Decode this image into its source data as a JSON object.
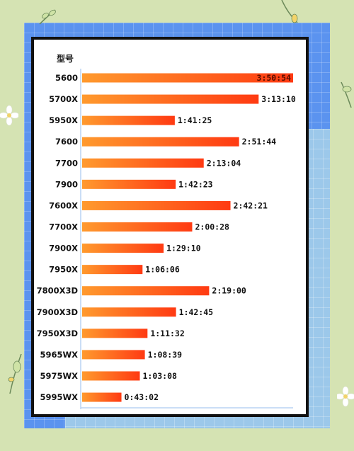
{
  "chart_data": {
    "type": "bar",
    "orientation": "horizontal",
    "header_label": "型号",
    "categories": [
      "5600",
      "5700X",
      "5950X",
      "7600",
      "7700",
      "7900",
      "7600X",
      "7700X",
      "7900X",
      "7950X",
      "7800X3D",
      "7900X3D",
      "7950X3D",
      "5965WX",
      "5975WX",
      "5995WX"
    ],
    "values": [
      13854,
      11590,
      6085,
      10304,
      7984,
      6143,
      9741,
      7228,
      5350,
      3966,
      8340,
      6165,
      4292,
      4119,
      3788,
      2582
    ],
    "data_labels": [
      "3:50:54",
      "3:13:10",
      "1:41:25",
      "2:51:44",
      "2:13:04",
      "1:42:23",
      "2:42:21",
      "2:00:28",
      "1:29:10",
      "1:06:06",
      "2:19:00",
      "1:42:45",
      "1:11:32",
      "1:08:39",
      "1:03:08",
      "0:43:02"
    ],
    "value_unit": "seconds",
    "colors": {
      "bar_start": "#ff9a2e",
      "bar_end": "#ff3a12",
      "axis": "#b9d3f3",
      "text": "#111111",
      "label_on_bar": "#5a0e00"
    }
  },
  "decor": {
    "background": "#d5e3b3",
    "panel_blue": "#5b93ef",
    "panel_light": "#9cc8ea"
  }
}
